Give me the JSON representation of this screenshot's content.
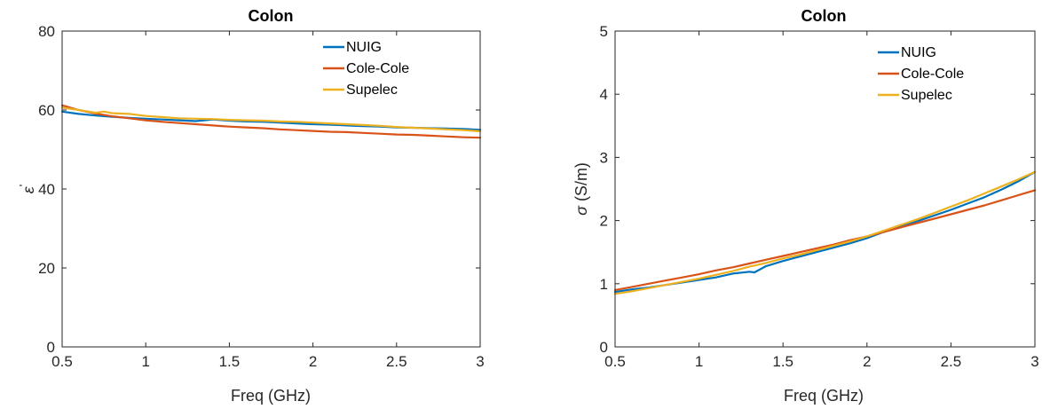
{
  "chart_data": [
    {
      "type": "line",
      "title": "Colon",
      "xlabel": "Freq (GHz)",
      "ylabel_symbol": "ε",
      "ylabel_prime": "'",
      "xlim": [
        0.5,
        3
      ],
      "ylim": [
        0,
        80
      ],
      "xticks": [
        "0.5",
        "1",
        "1.5",
        "2",
        "2.5",
        "3"
      ],
      "yticks": [
        "0",
        "20",
        "40",
        "60",
        "80"
      ],
      "legend_position": "top-right",
      "grid": false,
      "series": [
        {
          "name": "NUIG",
          "color": "#0072BD",
          "x": [
            0.5,
            0.6,
            0.7,
            0.8,
            0.9,
            1.0,
            1.1,
            1.2,
            1.3,
            1.4,
            1.5,
            1.6,
            1.7,
            1.8,
            1.9,
            2.0,
            2.1,
            2.2,
            2.3,
            2.4,
            2.5,
            2.6,
            2.7,
            2.8,
            2.9,
            3.0
          ],
          "y": [
            59.6,
            59.0,
            58.6,
            58.3,
            58.0,
            57.8,
            57.6,
            57.4,
            57.2,
            57.6,
            57.3,
            57.1,
            57.0,
            56.8,
            56.6,
            56.4,
            56.3,
            56.1,
            55.9,
            55.8,
            55.6,
            55.5,
            55.4,
            55.3,
            55.2,
            55.0
          ]
        },
        {
          "name": "Cole-Cole",
          "color": "#D95319",
          "x": [
            0.5,
            0.6,
            0.7,
            0.8,
            0.9,
            1.0,
            1.1,
            1.2,
            1.3,
            1.4,
            1.5,
            1.6,
            1.7,
            1.8,
            1.9,
            2.0,
            2.1,
            2.2,
            2.3,
            2.4,
            2.5,
            2.6,
            2.7,
            2.8,
            2.9,
            3.0
          ],
          "y": [
            61.2,
            60.0,
            59.1,
            58.4,
            57.9,
            57.4,
            57.0,
            56.7,
            56.4,
            56.1,
            55.8,
            55.6,
            55.4,
            55.1,
            54.9,
            54.7,
            54.5,
            54.4,
            54.2,
            54.0,
            53.8,
            53.7,
            53.5,
            53.3,
            53.1,
            53.0
          ]
        },
        {
          "name": "Supelec",
          "color": "#EDB120",
          "x": [
            0.5,
            0.6,
            0.7,
            0.75,
            0.8,
            0.9,
            1.0,
            1.1,
            1.2,
            1.3,
            1.4,
            1.5,
            1.6,
            1.7,
            1.8,
            1.9,
            2.0,
            2.1,
            2.2,
            2.3,
            2.4,
            2.5,
            2.6,
            2.7,
            2.8,
            2.9,
            3.0
          ],
          "y": [
            60.6,
            60.0,
            59.3,
            59.6,
            59.2,
            59.0,
            58.5,
            58.2,
            57.9,
            57.8,
            57.7,
            57.5,
            57.4,
            57.3,
            57.1,
            57.0,
            56.8,
            56.6,
            56.4,
            56.2,
            56.0,
            55.7,
            55.5,
            55.3,
            55.1,
            54.9,
            54.6
          ]
        }
      ]
    },
    {
      "type": "line",
      "title": "Colon",
      "xlabel": "Freq (GHz)",
      "ylabel_symbol": "σ",
      "ylabel_rest": " (S/m)",
      "xlim": [
        0.5,
        3
      ],
      "ylim": [
        0,
        5
      ],
      "xticks": [
        "0.5",
        "1",
        "1.5",
        "2",
        "2.5",
        "3"
      ],
      "yticks": [
        "0",
        "1",
        "2",
        "3",
        "4",
        "5"
      ],
      "legend_position": "top-right",
      "grid": false,
      "series": [
        {
          "name": "NUIG",
          "color": "#0072BD",
          "x": [
            0.5,
            0.6,
            0.7,
            0.8,
            0.9,
            1.0,
            1.1,
            1.2,
            1.3,
            1.33,
            1.4,
            1.5,
            1.6,
            1.7,
            1.8,
            1.9,
            2.0,
            2.1,
            2.2,
            2.3,
            2.4,
            2.5,
            2.6,
            2.7,
            2.8,
            2.9,
            3.0
          ],
          "y": [
            0.87,
            0.91,
            0.94,
            0.98,
            1.02,
            1.06,
            1.1,
            1.16,
            1.19,
            1.18,
            1.28,
            1.36,
            1.43,
            1.5,
            1.57,
            1.64,
            1.72,
            1.82,
            1.9,
            1.99,
            2.08,
            2.17,
            2.27,
            2.37,
            2.49,
            2.62,
            2.77
          ]
        },
        {
          "name": "Cole-Cole",
          "color": "#D95319",
          "x": [
            0.5,
            0.6,
            0.7,
            0.8,
            0.9,
            1.0,
            1.1,
            1.2,
            1.3,
            1.4,
            1.5,
            1.6,
            1.7,
            1.8,
            1.9,
            2.0,
            2.1,
            2.2,
            2.3,
            2.4,
            2.5,
            2.6,
            2.7,
            2.8,
            2.9,
            3.0
          ],
          "y": [
            0.9,
            0.95,
            1.0,
            1.05,
            1.1,
            1.15,
            1.21,
            1.26,
            1.32,
            1.38,
            1.44,
            1.5,
            1.56,
            1.62,
            1.69,
            1.75,
            1.82,
            1.89,
            1.96,
            2.03,
            2.1,
            2.17,
            2.24,
            2.32,
            2.4,
            2.48
          ]
        },
        {
          "name": "Supelec",
          "color": "#EDB120",
          "x": [
            0.5,
            0.6,
            0.7,
            0.8,
            0.9,
            1.0,
            1.1,
            1.2,
            1.3,
            1.4,
            1.5,
            1.6,
            1.7,
            1.8,
            1.9,
            2.0,
            2.1,
            2.2,
            2.3,
            2.4,
            2.5,
            2.6,
            2.7,
            2.8,
            2.9,
            3.0
          ],
          "y": [
            0.84,
            0.88,
            0.93,
            0.98,
            1.03,
            1.08,
            1.14,
            1.2,
            1.27,
            1.33,
            1.4,
            1.46,
            1.53,
            1.6,
            1.67,
            1.75,
            1.84,
            1.93,
            2.02,
            2.12,
            2.22,
            2.32,
            2.43,
            2.54,
            2.65,
            2.77
          ]
        }
      ]
    }
  ]
}
